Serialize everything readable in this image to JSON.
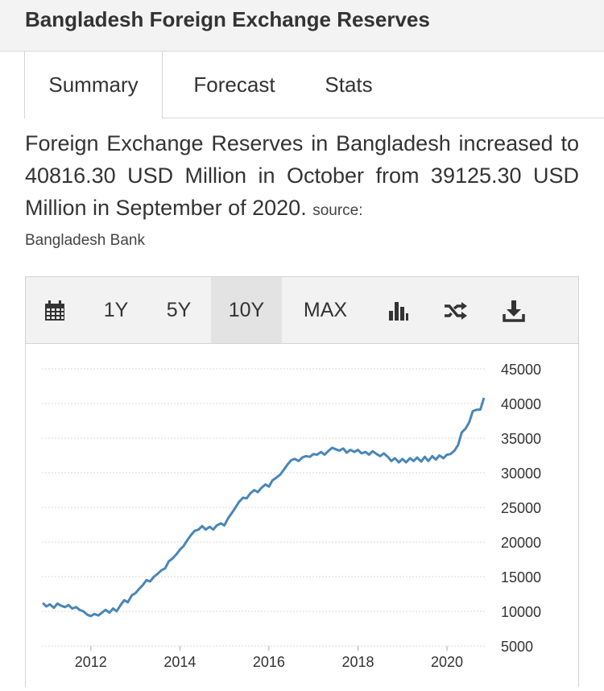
{
  "header": {
    "title": "Bangladesh Foreign Exchange Reserves"
  },
  "tabs": [
    {
      "label": "Summary",
      "active": true
    },
    {
      "label": "Forecast",
      "active": false
    },
    {
      "label": "Stats",
      "active": false
    }
  ],
  "summary": {
    "text": "Foreign Exchange Reserves in Bangladesh increased to 40816.30 USD Million in October from 39125.30 USD Million in September of 2020.",
    "source_label": "source:",
    "source_name": "Bangladesh Bank"
  },
  "toolbar": {
    "calendar_icon": "calendar-icon",
    "ranges": [
      "1Y",
      "5Y",
      "10Y",
      "MAX"
    ],
    "selected_range": "10Y",
    "chart_type_icon": "bar-chart-icon",
    "compare_icon": "shuffle-icon",
    "download_icon": "download-icon"
  },
  "colors": {
    "line": "#4a86b8",
    "grid": "#d8d8d8",
    "header_bg": "#f3f3f3",
    "toolbar_bg": "#f2f2f2",
    "selected_bg": "#e3e3e3"
  },
  "chart_data": {
    "type": "line",
    "title": "",
    "xlabel": "",
    "ylabel": "",
    "y_axis_position": "right",
    "ylim": [
      5000,
      45000
    ],
    "yticks": [
      5000,
      10000,
      15000,
      20000,
      25000,
      30000,
      35000,
      40000,
      45000
    ],
    "xticks": [
      2012,
      2014,
      2016,
      2018,
      2020
    ],
    "xlim": [
      2010.9,
      2020.85
    ],
    "grid": true,
    "legend": "none",
    "series": [
      {
        "points": [
          [
            2010.92,
            11200
          ],
          [
            2011.0,
            10700
          ],
          [
            2011.08,
            11000
          ],
          [
            2011.17,
            10500
          ],
          [
            2011.25,
            11100
          ],
          [
            2011.33,
            10800
          ],
          [
            2011.42,
            10600
          ],
          [
            2011.5,
            10900
          ],
          [
            2011.58,
            10400
          ],
          [
            2011.67,
            10600
          ],
          [
            2011.75,
            10200
          ],
          [
            2011.83,
            10000
          ],
          [
            2011.92,
            9500
          ],
          [
            2012.0,
            9300
          ],
          [
            2012.08,
            9600
          ],
          [
            2012.17,
            9400
          ],
          [
            2012.25,
            9800
          ],
          [
            2012.33,
            10200
          ],
          [
            2012.42,
            9800
          ],
          [
            2012.5,
            10400
          ],
          [
            2012.58,
            10000
          ],
          [
            2012.67,
            10900
          ],
          [
            2012.75,
            11600
          ],
          [
            2012.83,
            11300
          ],
          [
            2012.92,
            12300
          ],
          [
            2013.0,
            12600
          ],
          [
            2013.08,
            13200
          ],
          [
            2013.17,
            13800
          ],
          [
            2013.25,
            14500
          ],
          [
            2013.33,
            14300
          ],
          [
            2013.42,
            15000
          ],
          [
            2013.5,
            15400
          ],
          [
            2013.58,
            15900
          ],
          [
            2013.67,
            16200
          ],
          [
            2013.75,
            17200
          ],
          [
            2013.83,
            17600
          ],
          [
            2013.92,
            18200
          ],
          [
            2014.0,
            18900
          ],
          [
            2014.08,
            19400
          ],
          [
            2014.17,
            20300
          ],
          [
            2014.25,
            21000
          ],
          [
            2014.33,
            21600
          ],
          [
            2014.42,
            21800
          ],
          [
            2014.5,
            22300
          ],
          [
            2014.58,
            21800
          ],
          [
            2014.67,
            22200
          ],
          [
            2014.75,
            21800
          ],
          [
            2014.83,
            22400
          ],
          [
            2014.92,
            22700
          ],
          [
            2015.0,
            22400
          ],
          [
            2015.08,
            23400
          ],
          [
            2015.17,
            24200
          ],
          [
            2015.25,
            25000
          ],
          [
            2015.33,
            25800
          ],
          [
            2015.42,
            26400
          ],
          [
            2015.5,
            26300
          ],
          [
            2015.58,
            27000
          ],
          [
            2015.67,
            27500
          ],
          [
            2015.75,
            27200
          ],
          [
            2015.83,
            27800
          ],
          [
            2015.92,
            28300
          ],
          [
            2016.0,
            28000
          ],
          [
            2016.08,
            28900
          ],
          [
            2016.17,
            29300
          ],
          [
            2016.25,
            29700
          ],
          [
            2016.33,
            30400
          ],
          [
            2016.42,
            31200
          ],
          [
            2016.5,
            31800
          ],
          [
            2016.58,
            32000
          ],
          [
            2016.67,
            31700
          ],
          [
            2016.75,
            32200
          ],
          [
            2016.83,
            32400
          ],
          [
            2016.92,
            32300
          ],
          [
            2017.0,
            32700
          ],
          [
            2017.08,
            32600
          ],
          [
            2017.17,
            33000
          ],
          [
            2017.25,
            32600
          ],
          [
            2017.33,
            33100
          ],
          [
            2017.42,
            33600
          ],
          [
            2017.5,
            33400
          ],
          [
            2017.58,
            33200
          ],
          [
            2017.67,
            33500
          ],
          [
            2017.75,
            32900
          ],
          [
            2017.83,
            33300
          ],
          [
            2017.92,
            33000
          ],
          [
            2018.0,
            33300
          ],
          [
            2018.08,
            32800
          ],
          [
            2018.17,
            33000
          ],
          [
            2018.25,
            32600
          ],
          [
            2018.33,
            33100
          ],
          [
            2018.42,
            32700
          ],
          [
            2018.5,
            32400
          ],
          [
            2018.58,
            32800
          ],
          [
            2018.67,
            32300
          ],
          [
            2018.75,
            31700
          ],
          [
            2018.83,
            32100
          ],
          [
            2018.92,
            31500
          ],
          [
            2019.0,
            32000
          ],
          [
            2019.08,
            31500
          ],
          [
            2019.17,
            32100
          ],
          [
            2019.25,
            31700
          ],
          [
            2019.33,
            32200
          ],
          [
            2019.42,
            31600
          ],
          [
            2019.5,
            32300
          ],
          [
            2019.58,
            31700
          ],
          [
            2019.67,
            32400
          ],
          [
            2019.75,
            31900
          ],
          [
            2019.83,
            32500
          ],
          [
            2019.92,
            32100
          ],
          [
            2020.0,
            32600
          ],
          [
            2020.08,
            32700
          ],
          [
            2020.17,
            33200
          ],
          [
            2020.25,
            34000
          ],
          [
            2020.33,
            35800
          ],
          [
            2020.42,
            36400
          ],
          [
            2020.5,
            37300
          ],
          [
            2020.58,
            38900
          ],
          [
            2020.67,
            39100
          ],
          [
            2020.75,
            39125.3
          ],
          [
            2020.83,
            40816.3
          ]
        ]
      }
    ]
  }
}
